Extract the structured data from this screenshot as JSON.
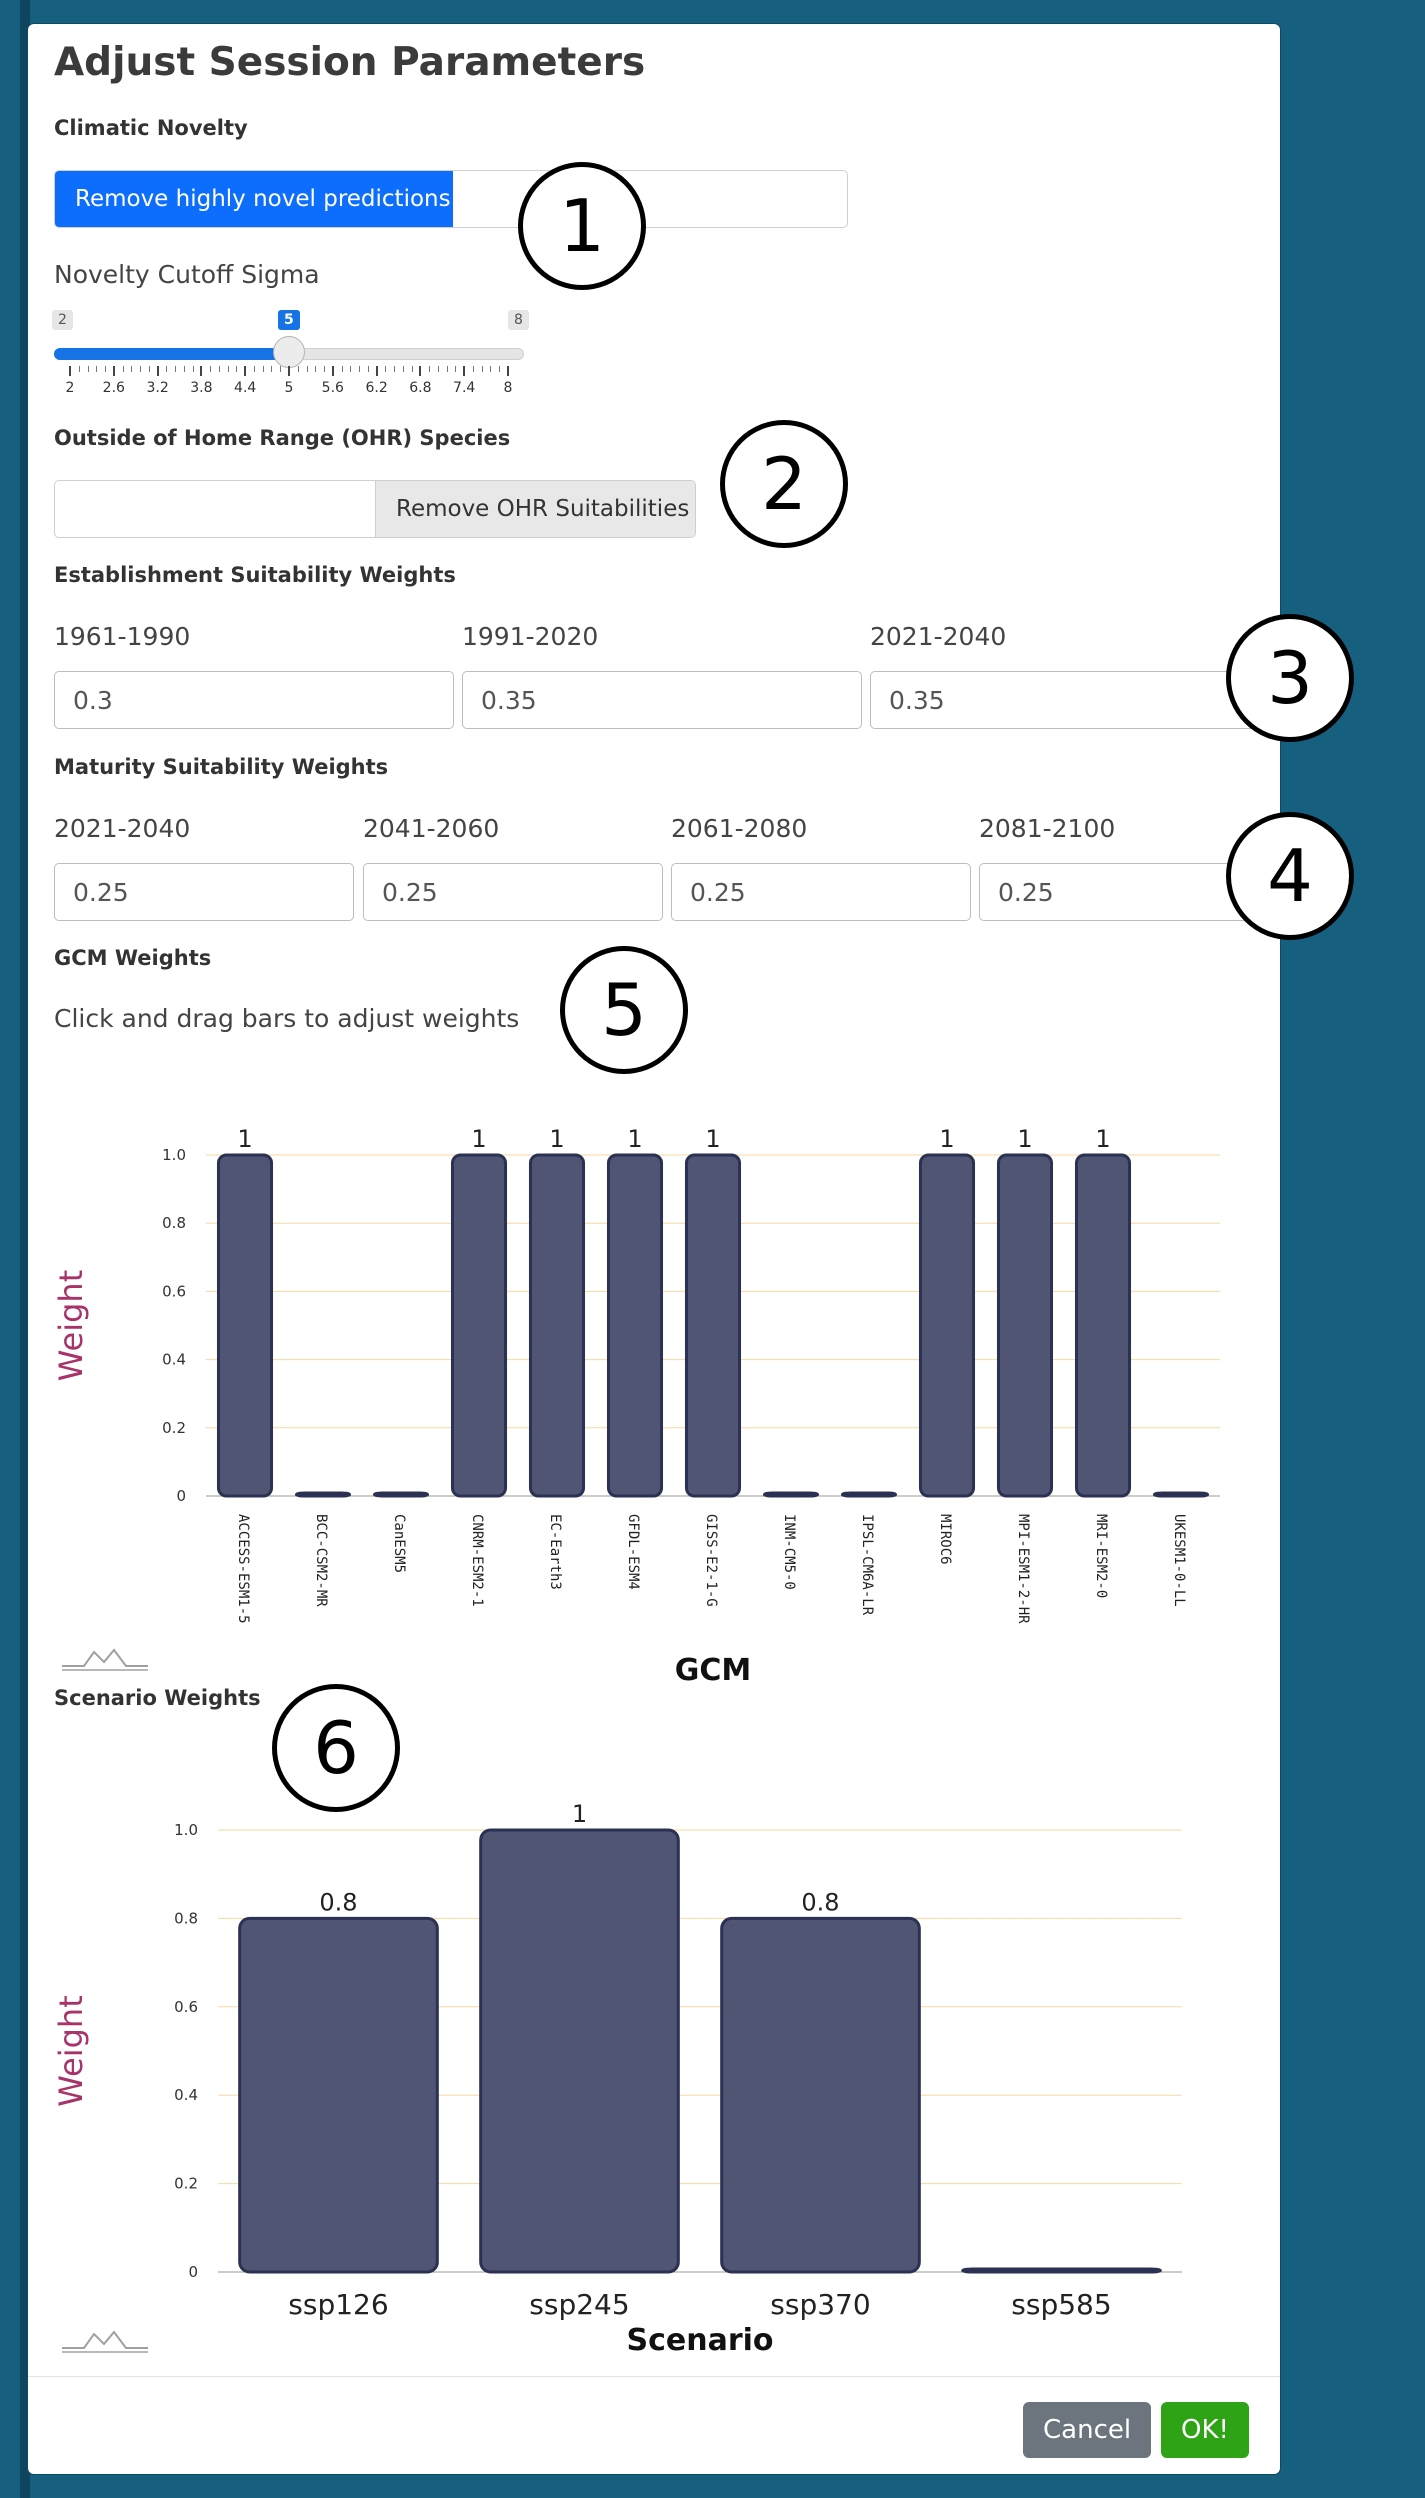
{
  "dialog": {
    "title": "Adjust Session Parameters"
  },
  "novelty": {
    "label": "Climatic Novelty",
    "toggle_label": "Remove highly novel predictions",
    "slider": {
      "label": "Novelty Cutoff Sigma",
      "min": 2,
      "max": 8,
      "value": 5,
      "ticks": [
        "2",
        "2.6",
        "3.2",
        "3.8",
        "4.4",
        "5",
        "5.6",
        "6.2",
        "6.8",
        "7.4",
        "8"
      ]
    }
  },
  "ohr": {
    "label": "Outside of Home Range (OHR) Species",
    "button_label": "Remove OHR Suitabilities"
  },
  "establishment": {
    "label": "Establishment Suitability Weights",
    "fields": [
      {
        "period": "1961-1990",
        "value": "0.3"
      },
      {
        "period": "1991-2020",
        "value": "0.35"
      },
      {
        "period": "2021-2040",
        "value": "0.35"
      }
    ]
  },
  "maturity": {
    "label": "Maturity Suitability Weights",
    "fields": [
      {
        "period": "2021-2040",
        "value": "0.25"
      },
      {
        "period": "2041-2060",
        "value": "0.25"
      },
      {
        "period": "2061-2080",
        "value": "0.25"
      },
      {
        "period": "2081-2100",
        "value": "0.25"
      }
    ]
  },
  "gcm": {
    "label": "GCM Weights",
    "hint": "Click and drag bars to adjust weights"
  },
  "scenario": {
    "label": "Scenario Weights"
  },
  "callouts": [
    "1",
    "2",
    "3",
    "4",
    "5",
    "6"
  ],
  "footer": {
    "cancel_label": "Cancel",
    "ok_label": "OK!"
  },
  "colors": {
    "bar": "#4f5573",
    "bar_edge": "#2b3152",
    "grid": "#f7d9a1",
    "ylabel": "#a8336a",
    "primary": "#0d6efd",
    "ok": "#2ea316"
  },
  "chart_data": [
    {
      "type": "bar",
      "xlabel": "GCM",
      "ylabel": "Weight",
      "ylim": [
        0,
        1
      ],
      "yticks": [
        "0",
        "0.2",
        "0.4",
        "0.6",
        "0.8",
        "1.0"
      ],
      "categories": [
        "ACCESS-ESM1-5",
        "BCC-CSM2-MR",
        "CanESM5",
        "CNRM-ESM2-1",
        "EC-Earth3",
        "GFDL-ESM4",
        "GISS-E2-1-G",
        "INM-CM5-0",
        "IPSL-CM6A-LR",
        "MIROC6",
        "MPI-ESM1-2-HR",
        "MRI-ESM2-0",
        "UKESM1-0-LL"
      ],
      "values": [
        1,
        0,
        0,
        1,
        1,
        1,
        1,
        0,
        0,
        1,
        1,
        1,
        0
      ],
      "data_labels": [
        "1",
        "",
        "",
        "1",
        "1",
        "1",
        "1",
        "",
        "",
        "1",
        "1",
        "1",
        ""
      ]
    },
    {
      "type": "bar",
      "xlabel": "Scenario",
      "ylabel": "Weight",
      "ylim": [
        0,
        1
      ],
      "yticks": [
        "0",
        "0.2",
        "0.4",
        "0.6",
        "0.8",
        "1.0"
      ],
      "categories": [
        "ssp126",
        "ssp245",
        "ssp370",
        "ssp585"
      ],
      "values": [
        0.8,
        1,
        0.8,
        0
      ],
      "data_labels": [
        "0.8",
        "1",
        "0.8",
        ""
      ]
    }
  ]
}
